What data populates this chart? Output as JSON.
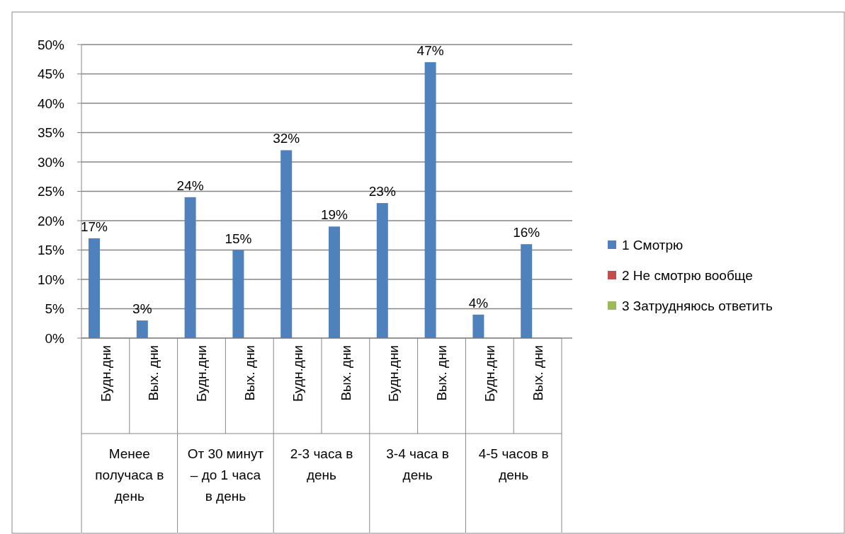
{
  "chart_data": {
    "type": "bar",
    "categories": [
      "Будн.дни",
      "Вых. дни",
      "Будн.дни",
      "Вых. дни",
      "Будн.дни",
      "Вых. дни",
      "Будн.дни",
      "Вых. дни",
      "Будн.дни",
      "Вых. дни"
    ],
    "series": [
      {
        "name": "1 Смотрю",
        "color": "#4f81bd",
        "values": [
          17,
          3,
          24,
          15,
          32,
          19,
          23,
          47,
          4,
          16
        ],
        "value_labels": [
          "17%",
          "3%",
          "24%",
          "15%",
          "32%",
          "19%",
          "23%",
          "47%",
          "4%",
          "16%"
        ]
      },
      {
        "name": "2 Не смотрю вообще",
        "color": "#c0504d",
        "values": [
          0,
          null,
          null,
          null,
          null,
          null,
          null,
          null,
          null,
          null
        ]
      },
      {
        "name": "3 Затрудняюсь ответить",
        "color": "#9bbb59",
        "values": [
          0,
          null,
          null,
          null,
          null,
          null,
          null,
          null,
          null,
          null
        ]
      }
    ],
    "annotations": [
      "Менее получаса в день",
      "От 30 минут – до 1 часа в день",
      "2-3 часа в день",
      "3-4 часа в день",
      "4-5 часов в день"
    ],
    "ylim": [
      0,
      50
    ],
    "yticks": [
      {
        "value": 0,
        "label": "0%"
      },
      {
        "value": 5,
        "label": "5%"
      },
      {
        "value": 10,
        "label": "10%"
      },
      {
        "value": 15,
        "label": "15%"
      },
      {
        "value": 20,
        "label": "20%"
      },
      {
        "value": 25,
        "label": "25%"
      },
      {
        "value": 30,
        "label": "30%"
      },
      {
        "value": 35,
        "label": "35%"
      },
      {
        "value": 40,
        "label": "40%"
      },
      {
        "value": 45,
        "label": "45%"
      },
      {
        "value": 50,
        "label": "50%"
      }
    ],
    "grid": "y",
    "legend": "right"
  }
}
